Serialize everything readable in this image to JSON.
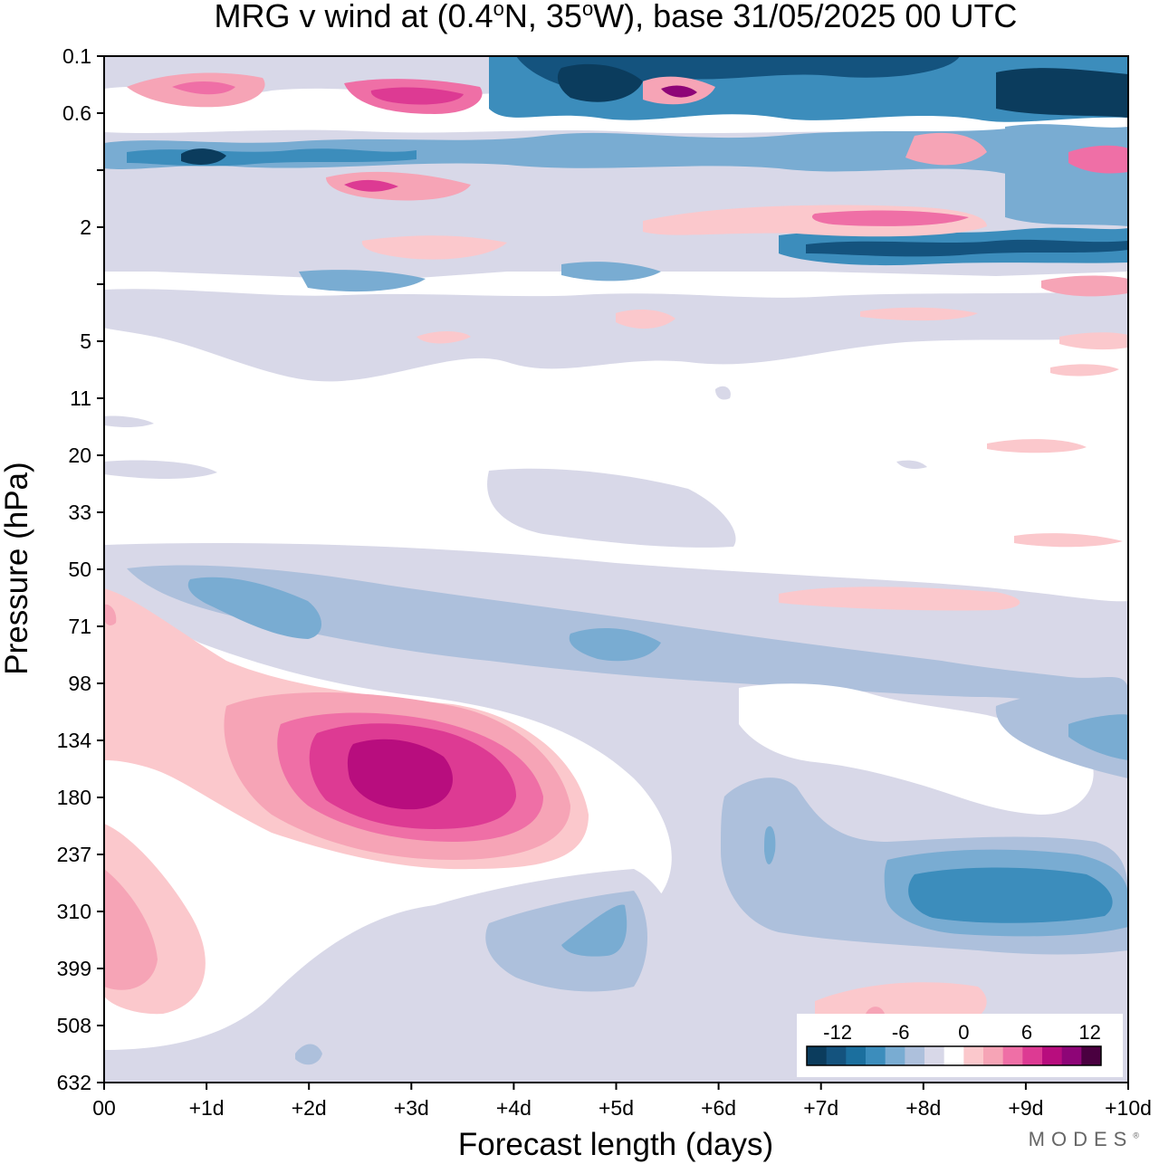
{
  "chart_data": {
    "type": "heatmap",
    "title": "MRG v wind at (0.4°N, 35°W),  base 31/05/2025  00 UTC",
    "title_parts": {
      "prefix": "MRG v wind at (0.4",
      "deg": "o",
      "mid": "N, 35",
      "suffix": "W),  base 31/05/2025  00 UTC"
    },
    "xlabel": "Forecast length (days)",
    "ylabel": "Pressure (hPa)",
    "x_ticks": [
      "00",
      "+1d",
      "+2d",
      "+3d",
      "+4d",
      "+5d",
      "+6d",
      "+7d",
      "+8d",
      "+9d",
      "+10d"
    ],
    "xlim": [
      0,
      10
    ],
    "y_ticks": [
      "0.1",
      "0.6",
      "1",
      "2",
      "5",
      "5",
      "11",
      "20",
      "33",
      "50",
      "71",
      "98",
      "134",
      "180",
      "237",
      "310",
      "399",
      "508",
      "632"
    ],
    "y_tick_labels": [
      "0.1",
      "0.6",
      "",
      "2",
      "",
      "5",
      "11",
      "20",
      "33",
      "50",
      "71",
      "98",
      "134",
      "180",
      "237",
      "310",
      "399",
      "508",
      "632"
    ],
    "y_scale": "log",
    "colorbar": {
      "ticks": [
        "-12",
        "-6",
        "0",
        "6",
        "12"
      ],
      "tick_values": [
        -12,
        -6,
        0,
        6,
        12
      ],
      "levels": [
        -14,
        -12,
        -10,
        -8,
        -6,
        -4,
        -2,
        0,
        2,
        4,
        6,
        8,
        10,
        12,
        14
      ],
      "colors": [
        "#0b3c5d",
        "#14537e",
        "#1b6f9e",
        "#3c8dbc",
        "#79acd2",
        "#adc0dc",
        "#d8d8e8",
        "#ffffff",
        "#fbc8cc",
        "#f6a4b6",
        "#ef6fa6",
        "#dd3a93",
        "#b80d7e",
        "#8e0577",
        "#4a0040"
      ]
    },
    "features": [
      {
        "name": "positive max",
        "x_day": 2.9,
        "pressure_hPa": 180,
        "value": 10
      },
      {
        "name": "negative band",
        "x_day": 2.0,
        "pressure_hPa": 85,
        "value": -5
      },
      {
        "name": "negative min",
        "x_day": 8.5,
        "pressure_hPa": 310,
        "value": -6
      },
      {
        "name": "negative lobe",
        "x_day": 5.0,
        "pressure_hPa": 370,
        "value": -5
      },
      {
        "name": "positive lobe",
        "x_day": 0.3,
        "pressure_hPa": 399,
        "value": 3
      },
      {
        "name": "negative upper",
        "x_day": 9.8,
        "pressure_hPa": 150,
        "value": -4
      },
      {
        "name": "positive weak",
        "x_day": 7.8,
        "pressure_hPa": 520,
        "value": 1
      },
      {
        "name": "positive band",
        "x_day": 8.0,
        "pressure_hPa": 80,
        "value": 1
      }
    ]
  },
  "brand": "MODES"
}
